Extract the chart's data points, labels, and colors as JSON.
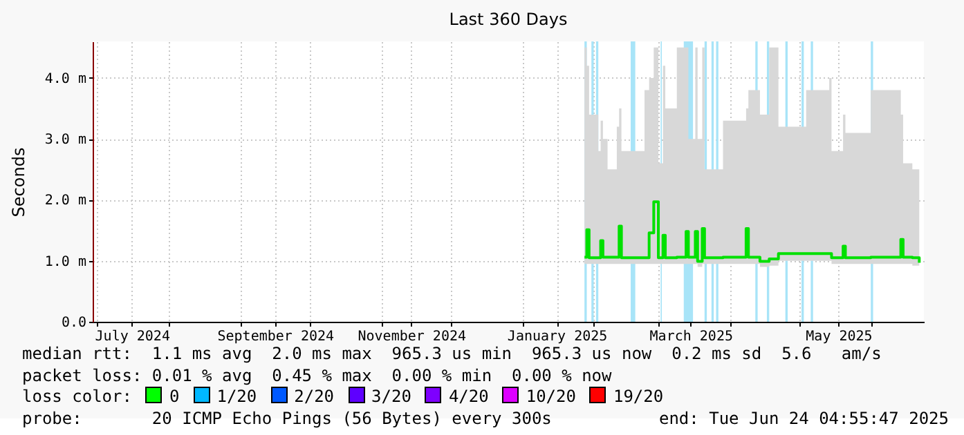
{
  "chart_data": {
    "type": "line",
    "title": "Last 360 Days",
    "ylabel": "Seconds",
    "x": [
      "2025-01-28",
      "2025-01-29",
      "2025-01-30",
      "2025-02-03",
      "2025-02-04",
      "2025-02-05",
      "2025-02-07",
      "2025-02-11",
      "2025-02-12",
      "2025-02-13",
      "2025-02-23",
      "2025-02-25",
      "2025-02-27",
      "2025-03-01",
      "2025-03-03",
      "2025-03-04",
      "2025-03-09",
      "2025-03-13",
      "2025-03-14",
      "2025-03-17",
      "2025-03-18",
      "2025-03-20",
      "2025-03-21",
      "2025-03-29",
      "2025-04-08",
      "2025-04-09",
      "2025-04-14",
      "2025-04-18",
      "2025-04-22",
      "2025-05-04",
      "2025-05-14",
      "2025-05-15",
      "2025-05-20",
      "2025-05-21",
      "2025-06-01",
      "2025-06-14",
      "2025-06-15",
      "2025-06-19",
      "2025-06-22"
    ],
    "series": [
      {
        "color": "#00e000",
        "values": [
          1.06,
          1.51,
          1.05,
          1.05,
          1.33,
          1.06,
          1.06,
          1.06,
          1.57,
          1.05,
          1.05,
          1.46,
          1.97,
          1.05,
          1.42,
          1.05,
          1.06,
          1.48,
          1.06,
          1.48,
          0.99,
          1.53,
          1.05,
          1.06,
          1.53,
          1.06,
          0.99,
          1.03,
          1.12,
          1.12,
          1.12,
          1.05,
          1.24,
          1.05,
          1.06,
          1.35,
          1.06,
          1.05,
          0.97
        ],
        "lower": [
          0.95,
          0.95,
          0.95,
          0.95,
          0.95,
          0.95,
          0.95,
          0.95,
          0.95,
          0.95,
          0.95,
          0.95,
          0.95,
          0.95,
          0.95,
          0.95,
          0.95,
          0.95,
          0.95,
          0.95,
          0.9,
          0.95,
          0.95,
          0.95,
          0.95,
          0.95,
          0.9,
          0.92,
          1.0,
          1.0,
          1.0,
          0.95,
          0.95,
          0.95,
          0.95,
          0.95,
          0.95,
          0.92,
          0.9
        ],
        "upper": [
          4.5,
          4.2,
          3.4,
          2.8,
          3.3,
          3.0,
          2.5,
          3.2,
          3.5,
          2.8,
          3.8,
          4.0,
          4.5,
          2.6,
          4.2,
          3.5,
          4.5,
          4.5,
          3.0,
          4.5,
          3.0,
          4.5,
          2.5,
          3.3,
          3.5,
          3.8,
          3.4,
          4.5,
          3.2,
          3.8,
          4.0,
          2.8,
          3.4,
          3.1,
          3.8,
          3.4,
          2.6,
          2.5,
          2.5
        ]
      }
    ],
    "bands": [
      {
        "axis": "x",
        "from": "2025-01-28",
        "to": "2025-01-29",
        "color": "#a8e4f8"
      },
      {
        "axis": "x",
        "from": "2025-01-31",
        "to": "2025-02-01",
        "color": "#a8e4f8"
      },
      {
        "axis": "x",
        "from": "2025-02-02",
        "to": "2025-02-03",
        "color": "#a8e4f8"
      },
      {
        "axis": "x",
        "from": "2025-02-17",
        "to": "2025-02-19",
        "color": "#a8e4f8"
      },
      {
        "axis": "x",
        "from": "2025-03-02",
        "to": "2025-03-02T12:00",
        "color": "#a8e4f8"
      },
      {
        "axis": "x",
        "from": "2025-03-12",
        "to": "2025-03-16",
        "color": "#a8e4f8"
      },
      {
        "axis": "x",
        "from": "2025-03-21",
        "to": "2025-03-22",
        "color": "#a8e4f8"
      },
      {
        "axis": "x",
        "from": "2025-03-24",
        "to": "2025-03-25",
        "color": "#a8e4f8"
      },
      {
        "axis": "x",
        "from": "2025-03-26",
        "to": "2025-03-27",
        "color": "#a8e4f8"
      },
      {
        "axis": "x",
        "from": "2025-04-12",
        "to": "2025-04-13",
        "color": "#a8e4f8"
      },
      {
        "axis": "x",
        "from": "2025-04-17",
        "to": "2025-04-18",
        "color": "#a8e4f8"
      },
      {
        "axis": "x",
        "from": "2025-04-25",
        "to": "2025-04-26",
        "color": "#a8e4f8"
      },
      {
        "axis": "x",
        "from": "2025-05-02",
        "to": "2025-05-03",
        "color": "#a8e4f8"
      },
      {
        "axis": "x",
        "from": "2025-05-06",
        "to": "2025-05-07",
        "color": "#a8e4f8"
      },
      {
        "axis": "x",
        "from": "2025-06-01",
        "to": "2025-06-02",
        "color": "#a8e4f8"
      }
    ],
    "xlim": [
      "2024-06-29",
      "2025-06-24"
    ],
    "xticks": [
      {
        "value": "2024-07-01",
        "label": null
      },
      {
        "value": "2024-07-16",
        "label": "July 2024"
      },
      {
        "value": "2024-08-01",
        "label": null
      },
      {
        "value": "2024-09-01",
        "label": null
      },
      {
        "value": "2024-09-16",
        "label": "September 2024"
      },
      {
        "value": "2024-10-01",
        "label": null
      },
      {
        "value": "2024-11-01",
        "label": null
      },
      {
        "value": "2024-11-14",
        "label": "November 2024"
      },
      {
        "value": "2024-12-01",
        "label": null
      },
      {
        "value": "2025-01-01",
        "label": null
      },
      {
        "value": "2025-01-16",
        "label": "January 2025"
      },
      {
        "value": "2025-02-01",
        "label": null
      },
      {
        "value": "2025-03-01",
        "label": null
      },
      {
        "value": "2025-03-15",
        "label": "March 2025"
      },
      {
        "value": "2025-04-01",
        "label": null
      },
      {
        "value": "2025-05-01",
        "label": null
      },
      {
        "value": "2025-05-18",
        "label": "May 2025"
      },
      {
        "value": "2025-06-01",
        "label": null
      }
    ],
    "ylim": [
      0,
      4.6
    ],
    "yticks": [
      {
        "value": 0,
        "label": "0.0"
      },
      {
        "value": 1,
        "label": "1.0 m"
      },
      {
        "value": 2,
        "label": "2.0 m"
      },
      {
        "value": 3,
        "label": "3.0 m"
      },
      {
        "value": 4,
        "label": "4.0 m"
      }
    ],
    "grid": true,
    "annotations": [
      "median rtt:  1.1 ms avg  2.0 ms max  965.3 us min  965.3 us now  0.2 ms sd  5.6   am/s",
      "packet loss: 0.01 % avg  0.45 % max  0.00 % min  0.00 % now",
      "loss color:",
      "0",
      "1/20",
      "2/20",
      "3/20",
      "4/20",
      "10/20",
      "19/20",
      "probe:       20 ICMP Echo Pings (56 Bytes) every 300s",
      "end: Tue Jun 24 04:55:47 2025"
    ]
  }
}
